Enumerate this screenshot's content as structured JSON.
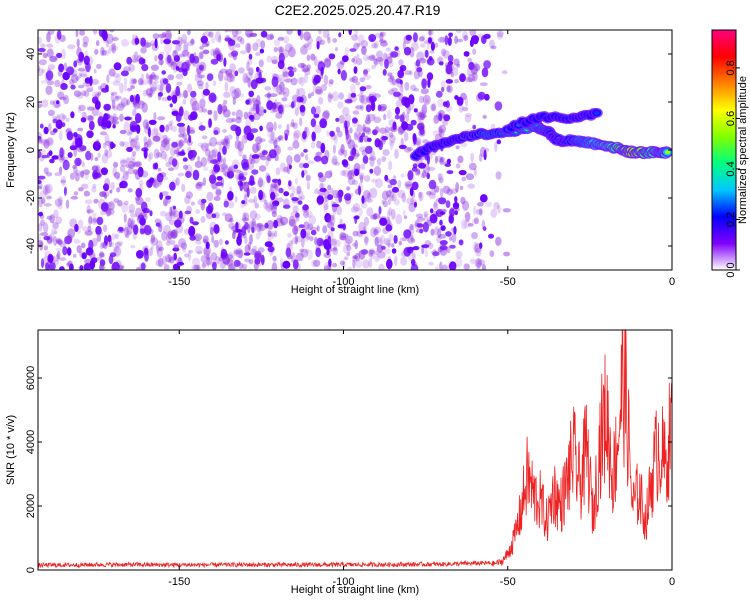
{
  "title": "C2E2.2025.025.20.47.R19",
  "chart_data": [
    {
      "type": "heatmap",
      "xlabel": "Height of straight line (km)",
      "ylabel": "Frequency (Hz)",
      "xlim": [
        -193,
        0
      ],
      "ylim": [
        -50,
        50
      ],
      "xticks": [
        -150,
        -100,
        -50,
        0
      ],
      "yticks": [
        -40,
        -20,
        0,
        20,
        40
      ],
      "noise_region_x": [
        -193,
        -57
      ],
      "signal_ridge": [
        {
          "x": -78,
          "y": -2,
          "amp": 0.15
        },
        {
          "x": -70,
          "y": 3,
          "amp": 0.2
        },
        {
          "x": -62,
          "y": 6,
          "amp": 0.35
        },
        {
          "x": -55,
          "y": 7,
          "amp": 0.45
        },
        {
          "x": -48,
          "y": 8,
          "amp": 0.5
        },
        {
          "x": -42,
          "y": 10,
          "amp": 0.55
        },
        {
          "x": -38,
          "y": 8,
          "amp": 0.45
        },
        {
          "x": -35,
          "y": 4,
          "amp": 0.35
        },
        {
          "x": -30,
          "y": 4,
          "amp": 0.45
        },
        {
          "x": -25,
          "y": 3,
          "amp": 0.55
        },
        {
          "x": -20,
          "y": 2,
          "amp": 0.65
        },
        {
          "x": -15,
          "y": 0,
          "amp": 0.8
        },
        {
          "x": -12,
          "y": -1,
          "amp": 0.95
        },
        {
          "x": -8,
          "y": -1,
          "amp": 0.75
        },
        {
          "x": -4,
          "y": -1,
          "amp": 0.7
        },
        {
          "x": -1,
          "y": -1,
          "amp": 0.6
        }
      ],
      "upper_branch": [
        {
          "x": -50,
          "y": 9,
          "amp": 0.3
        },
        {
          "x": -40,
          "y": 14,
          "amp": 0.2
        },
        {
          "x": -30,
          "y": 13,
          "amp": 0.25
        },
        {
          "x": -22,
          "y": 16,
          "amp": 0.3
        }
      ],
      "colorbar": {
        "label": "Normalized spectral amplitude",
        "range": [
          0.0,
          0.95
        ],
        "ticks": [
          "0.0",
          "0.2",
          "0.4",
          "0.6",
          "0.8"
        ],
        "tick_values": [
          0.0,
          0.2,
          0.4,
          0.6,
          0.8
        ],
        "colors": [
          "#ffffff",
          "#8000ff",
          "#0000ff",
          "#00c8ff",
          "#00ff80",
          "#80ff00",
          "#ffff00",
          "#ff8000",
          "#ff0000",
          "#ff0080"
        ]
      },
      "colors": {
        "noise": "#8a2be2",
        "noise_dense": "#6a00ff"
      }
    },
    {
      "type": "line",
      "xlabel": "Height of straight line (km)",
      "ylabel": "SNR (10 * v/v)",
      "xlim": [
        -193,
        0
      ],
      "ylim": [
        0,
        7500
      ],
      "xticks": [
        -150,
        -100,
        -50,
        0
      ],
      "yticks": [
        0,
        2000,
        4000,
        6000
      ],
      "series": [
        {
          "color": "#ee2222",
          "x": [
            -193,
            -170,
            -150,
            -130,
            -110,
            -90,
            -70,
            -55,
            -52,
            -50,
            -48,
            -46,
            -44,
            -42,
            -40,
            -38,
            -36,
            -34,
            -32,
            -30,
            -28,
            -26,
            -24,
            -22,
            -20,
            -18,
            -16,
            -15,
            -14,
            -12,
            -10,
            -8,
            -6,
            -4,
            -2,
            0
          ],
          "values": [
            150,
            170,
            160,
            165,
            160,
            170,
            180,
            220,
            300,
            600,
            1200,
            2200,
            3600,
            2800,
            2600,
            1800,
            3000,
            2400,
            3300,
            4400,
            3200,
            4600,
            2000,
            4800,
            6000,
            3400,
            5600,
            7400,
            6500,
            2400,
            3000,
            1800,
            3600,
            4800,
            3900,
            5700
          ]
        }
      ]
    }
  ]
}
